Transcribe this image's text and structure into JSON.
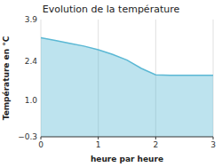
{
  "chart_data": {
    "type": "area",
    "title": "Evolution de la température",
    "x_label": "heure par heure",
    "y_label": "Température en °C",
    "x": [
      0,
      0.25,
      0.5,
      0.75,
      1.0,
      1.25,
      1.5,
      1.75,
      2.0,
      2.25,
      2.5,
      2.75,
      3.0
    ],
    "values": [
      3.25,
      3.15,
      3.05,
      2.95,
      2.82,
      2.65,
      2.45,
      2.15,
      1.92,
      1.9,
      1.9,
      1.9,
      1.9
    ],
    "color": "#5bb8d4",
    "xlim": [
      0,
      3
    ],
    "ylim": [
      -0.3,
      3.9
    ],
    "xticks": [
      0,
      1,
      2,
      3
    ],
    "yticks": [
      {
        "value": -0.3,
        "label": "−0.3"
      },
      {
        "value": 1.0,
        "label": "1.0"
      },
      2.4,
      3.9
    ],
    "grid": "x"
  }
}
